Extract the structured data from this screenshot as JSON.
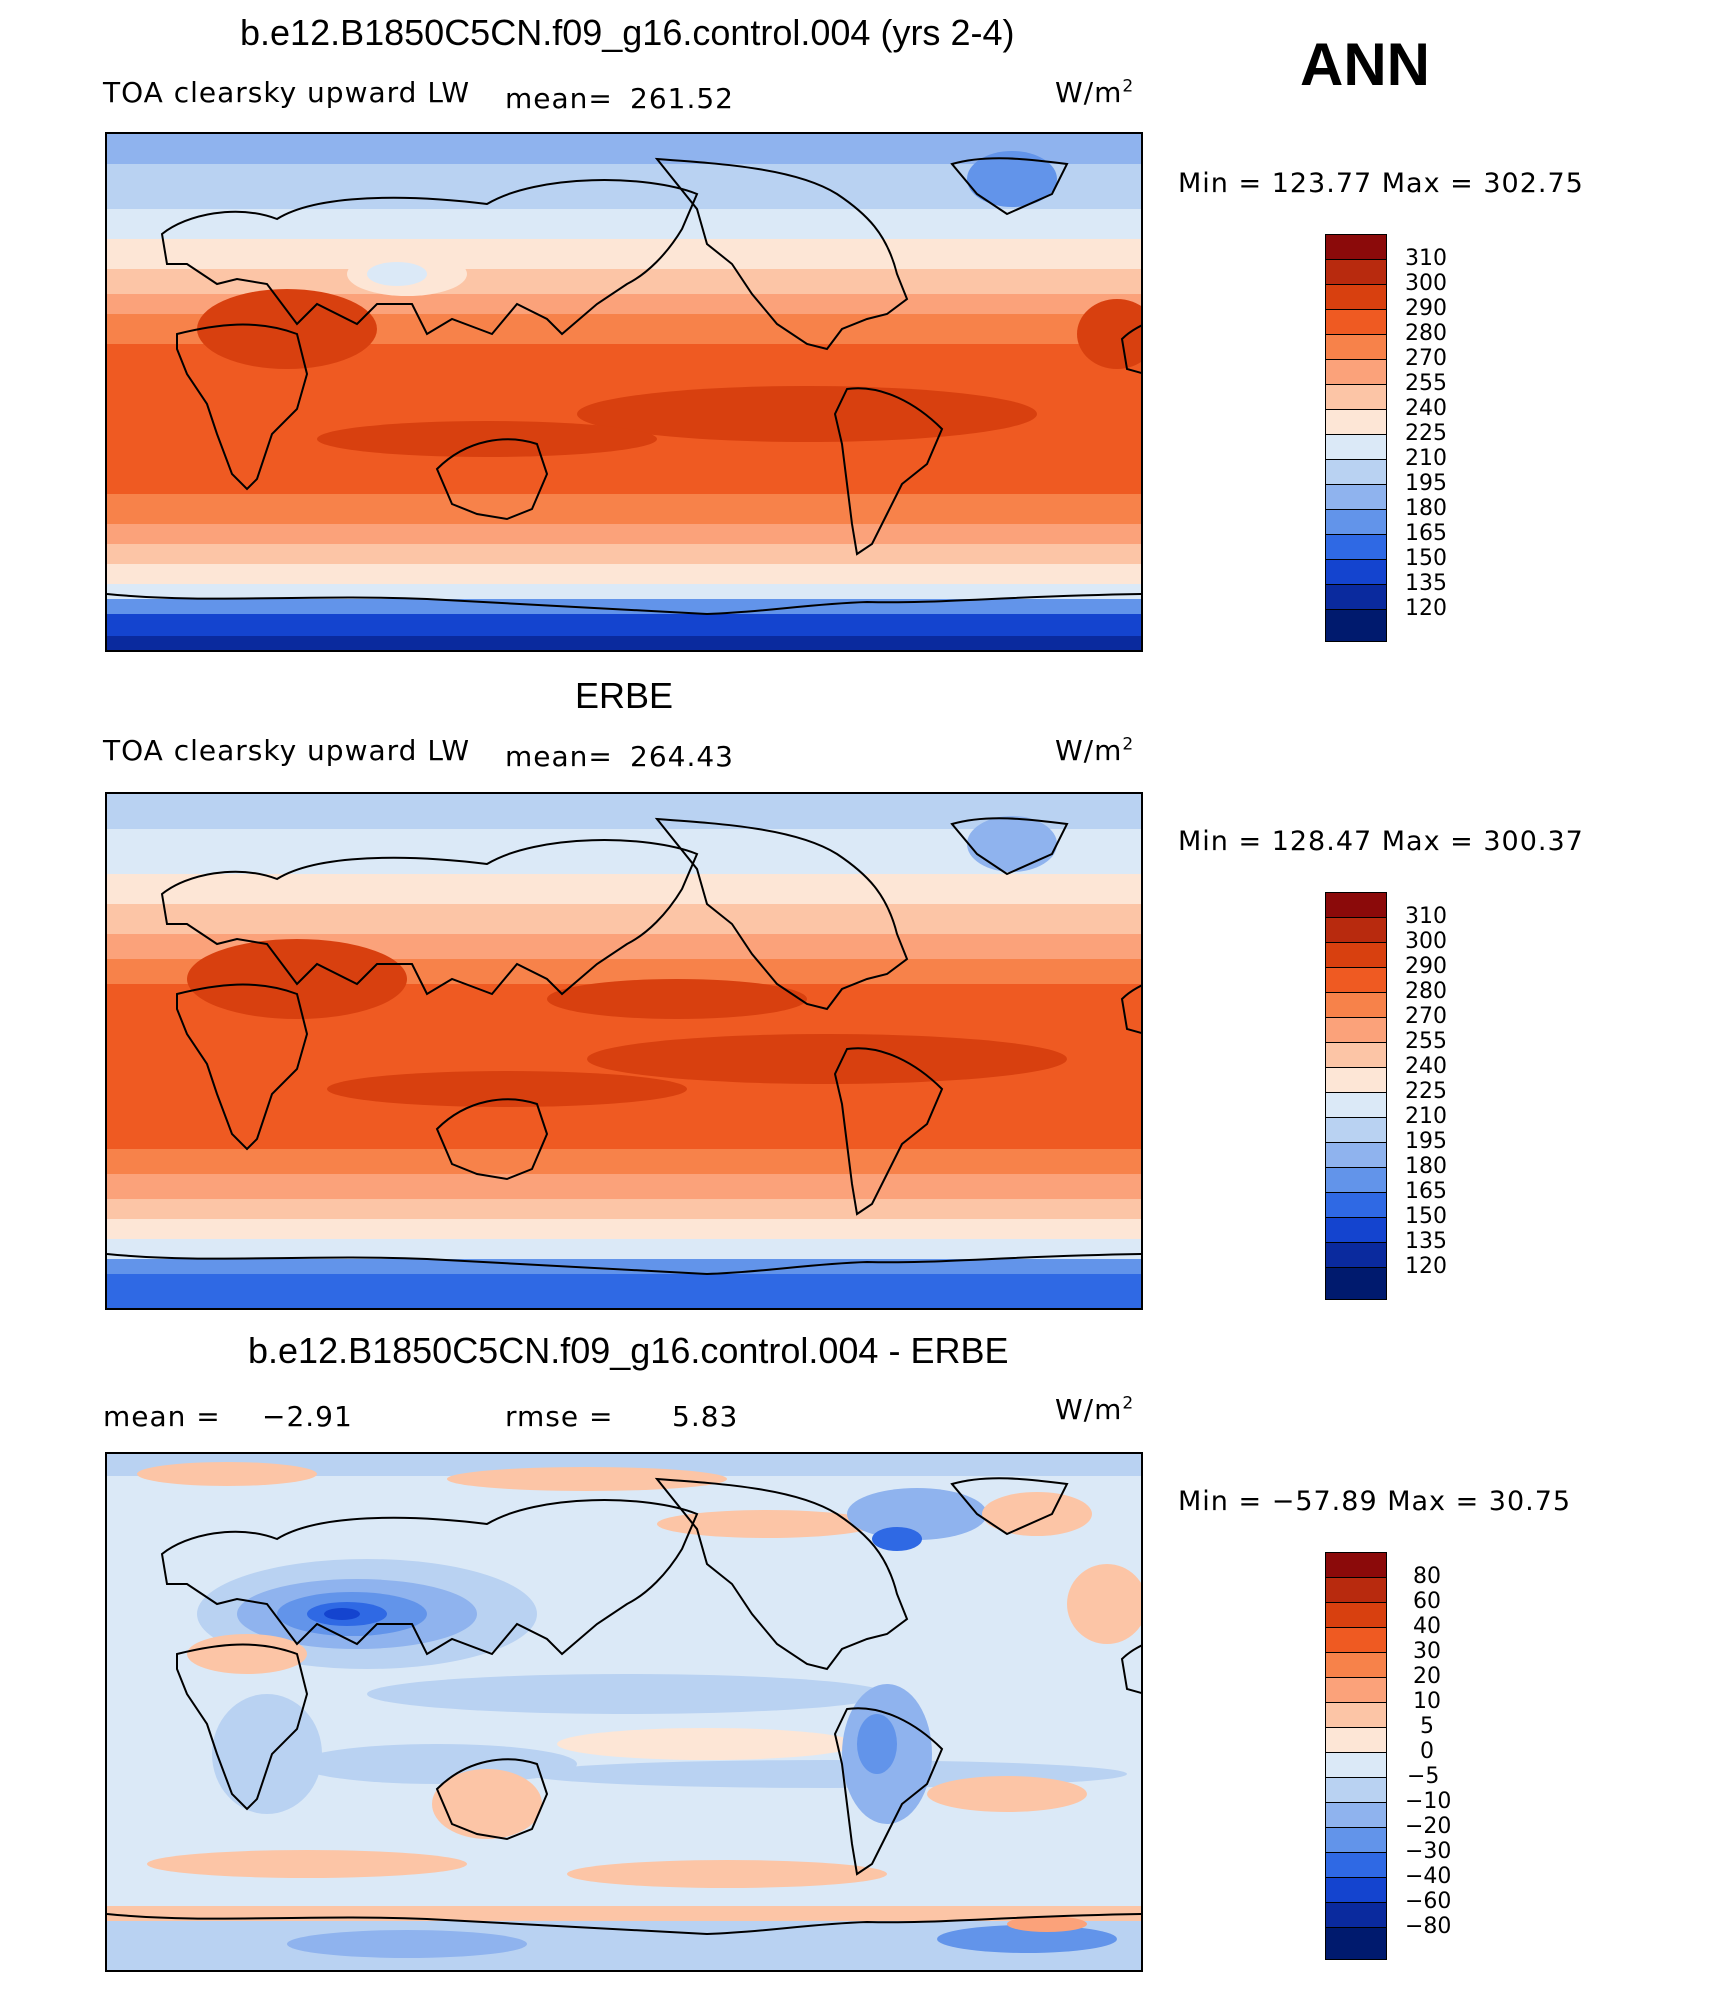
{
  "season": "ANN",
  "units": "W/m",
  "units_sup": "2",
  "panels": [
    {
      "title": "b.e12.B1850C5CN.f09_g16.control.004 (yrs 2-4)",
      "left_label": "TOA clearsky upward LW",
      "stat_label": "mean=",
      "stat_value": "261.52",
      "minmax": "Min  =  123.77  Max  =  302.75"
    },
    {
      "title": "ERBE",
      "left_label": "TOA clearsky upward LW",
      "stat_label": "mean=",
      "stat_value": "264.43",
      "minmax": "Min  =  128.47  Max  =  300.37"
    },
    {
      "title": "b.e12.B1850C5CN.f09_g16.control.004 - ERBE",
      "left_label": "mean  =",
      "left_value": "−2.91",
      "stat_label": "rmse  =",
      "stat_value": "5.83",
      "minmax": "Min  =  −57.89  Max  =    30.75"
    }
  ],
  "colorbars": {
    "absolute": {
      "levels": [
        "310",
        "300",
        "290",
        "280",
        "270",
        "255",
        "240",
        "225",
        "210",
        "195",
        "180",
        "165",
        "150",
        "135",
        "120"
      ],
      "colors": [
        "#8b0a0a",
        "#b82a0e",
        "#d8400f",
        "#ef5a22",
        "#f7824a",
        "#fba27a",
        "#fcc5a6",
        "#fde6d6",
        "#dbe9f7",
        "#b9d2f2",
        "#8fb3ee",
        "#6294ea",
        "#2f69e4",
        "#1444cf",
        "#0a2a9e",
        "#001a6e"
      ]
    },
    "difference": {
      "levels": [
        "80",
        "60",
        "40",
        "30",
        "20",
        "10",
        "5",
        "0",
        "−5",
        "−10",
        "−20",
        "−30",
        "−40",
        "−60",
        "−80"
      ],
      "colors": [
        "#8b0a0a",
        "#b82a0e",
        "#d8400f",
        "#ef5a22",
        "#f7824a",
        "#fba27a",
        "#fcc5a6",
        "#fde6d6",
        "#dbe9f7",
        "#b9d2f2",
        "#8fb3ee",
        "#6294ea",
        "#2f69e4",
        "#1444cf",
        "#0a2a9e",
        "#001a6e"
      ]
    }
  }
}
